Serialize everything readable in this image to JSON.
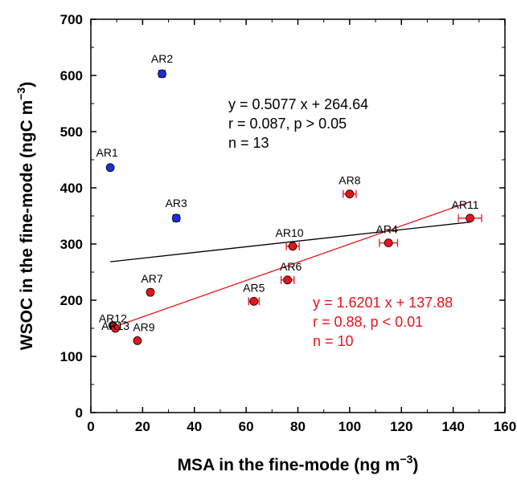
{
  "chart_data": {
    "type": "scatter",
    "title": "",
    "xlabel_main": "MSA in the fine-mode (ng m",
    "xlabel_sup": "−3",
    "xlabel_close": ")",
    "ylabel_main": "WSOC in the fine-mode (ngC m",
    "ylabel_sup": "−3",
    "ylabel_close": ")",
    "xlim": [
      0,
      160
    ],
    "ylim": [
      0,
      700
    ],
    "xticks": [
      0,
      20,
      40,
      60,
      80,
      100,
      120,
      140,
      160
    ],
    "yticks": [
      0,
      100,
      200,
      300,
      400,
      500,
      600,
      700
    ],
    "grid": false,
    "colors": {
      "blue": "#1a2fd6",
      "red": "#e8141c",
      "black": "#000000"
    },
    "series": [
      {
        "color": "blue",
        "points": [
          {
            "label": "AR1",
            "x": 7.5,
            "y": 436,
            "xerr": 0
          },
          {
            "label": "AR2",
            "x": 27.5,
            "y": 603,
            "xerr": 1.2
          },
          {
            "label": "AR3",
            "x": 33,
            "y": 346,
            "xerr": 1.2
          }
        ]
      },
      {
        "color": "red",
        "points": [
          {
            "label": "AR4",
            "x": 115,
            "y": 302,
            "xerr": 3.5
          },
          {
            "label": "AR5",
            "x": 63,
            "y": 198,
            "xerr": 2
          },
          {
            "label": "AR6",
            "x": 76,
            "y": 236,
            "xerr": 2.5
          },
          {
            "label": "AR7",
            "x": 23,
            "y": 214,
            "xerr": 0.8
          },
          {
            "label": "AR8",
            "x": 100,
            "y": 389,
            "xerr": 2.5
          },
          {
            "label": "AR9",
            "x": 18,
            "y": 128,
            "xerr": 0.5
          },
          {
            "label": "AR10",
            "x": 78,
            "y": 296,
            "xerr": 2.5
          },
          {
            "label": "AR11",
            "x": 146.5,
            "y": 346,
            "xerr": 4.5
          },
          {
            "label": "AR12",
            "x": 8.5,
            "y": 155,
            "xerr": 0.5
          },
          {
            "label": "AR13",
            "x": 9.5,
            "y": 150,
            "xerr": 0.5
          }
        ]
      }
    ],
    "fits": [
      {
        "color": "black",
        "x": [
          7.5,
          146.5
        ],
        "slope": 0.5077,
        "intercept": 264.64
      },
      {
        "color": "red",
        "x": [
          8.5,
          146.5
        ],
        "slope": 1.6201,
        "intercept": 137.88
      }
    ],
    "annotations": [
      {
        "color": "black",
        "lines": [
          "y = 0.5077 x + 264.64",
          "r = 0.087, p > 0.05",
          "n = 13"
        ]
      },
      {
        "color": "red",
        "lines": [
          "y = 1.6201 x + 137.88",
          "r = 0.88, p < 0.01",
          "n = 10"
        ]
      }
    ]
  }
}
